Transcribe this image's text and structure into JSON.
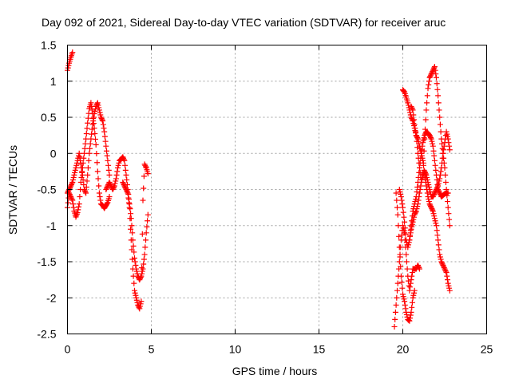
{
  "chart_data": {
    "type": "scatter",
    "title": "Day 092 of 2021, Sidereal Day-to-day VTEC variation (SDTVAR) for receiver aruc",
    "xlabel": "GPS time / hours",
    "ylabel": "SDTVAR / TECUs",
    "xlim": [
      0,
      25
    ],
    "ylim": [
      -2.5,
      1.5
    ],
    "x_ticks": [
      0,
      5,
      10,
      15,
      20,
      25
    ],
    "x_tick_labels": [
      "0",
      "5",
      "10",
      "15",
      "20",
      "25"
    ],
    "y_ticks": [
      -2.5,
      -2,
      -1.5,
      -1,
      -0.5,
      0,
      0.5,
      1,
      1.5
    ],
    "y_tick_labels": [
      "-2.5",
      "-2",
      "-1.5",
      "-1",
      "-0.5",
      "0",
      "0.5",
      "1",
      "1.5"
    ],
    "grid": true,
    "marker": "+",
    "color": "#ff0000",
    "series": [
      {
        "name": "s1",
        "x": [
          0.0,
          0.1,
          0.2,
          0.3
        ],
        "y": [
          1.15,
          1.25,
          1.33,
          1.4
        ]
      },
      {
        "name": "s2",
        "x": [
          0.0,
          0.1,
          0.2,
          0.3,
          0.4,
          0.5,
          0.6,
          0.7,
          0.8,
          0.9,
          1.0,
          1.1,
          1.2,
          1.3,
          1.4,
          1.5,
          1.6,
          1.7,
          1.8,
          1.9,
          2.0,
          2.1,
          2.2,
          2.3,
          2.4,
          2.5
        ],
        "y": [
          -0.75,
          -0.55,
          -0.6,
          -0.65,
          -0.8,
          -0.88,
          -0.82,
          -0.7,
          -0.4,
          -0.2,
          0.0,
          0.2,
          0.42,
          0.62,
          0.7,
          0.55,
          0.35,
          0.12,
          -0.25,
          -0.55,
          -0.7,
          -0.72,
          -0.76,
          -0.72,
          -0.68,
          -0.6
        ]
      },
      {
        "name": "s3",
        "x": [
          0.0,
          0.1,
          0.2,
          0.3,
          0.4,
          0.5,
          0.6,
          0.7,
          0.8,
          0.9,
          1.0,
          1.1,
          1.2,
          1.3,
          1.4,
          1.5,
          1.6,
          1.7,
          1.8,
          1.9,
          2.0,
          2.1,
          2.2,
          2.3,
          2.4,
          2.5
        ],
        "y": [
          -0.55,
          -0.5,
          -0.45,
          -0.4,
          -0.3,
          -0.2,
          -0.1,
          0.0,
          -0.15,
          -0.3,
          -0.5,
          -0.55,
          -0.3,
          0.0,
          0.2,
          0.4,
          0.55,
          0.65,
          0.7,
          0.6,
          0.5,
          0.45,
          0.3,
          0.1,
          -0.1,
          -0.3
        ]
      },
      {
        "name": "s4",
        "x": [
          2.3,
          2.4,
          2.5,
          2.6,
          2.7,
          2.8,
          2.9,
          3.0,
          3.1,
          3.2,
          3.3,
          3.4,
          3.5,
          3.6,
          3.7,
          3.8,
          3.9,
          4.0,
          4.1,
          4.2,
          4.3,
          4.4,
          4.5,
          4.6,
          4.7,
          4.8
        ],
        "y": [
          -0.5,
          -0.45,
          -0.4,
          -0.45,
          -0.5,
          -0.45,
          -0.35,
          -0.2,
          -0.1,
          -0.08,
          -0.05,
          -0.1,
          -0.3,
          -0.5,
          -0.7,
          -0.9,
          -1.2,
          -1.45,
          -1.6,
          -1.7,
          -1.75,
          -1.7,
          -1.6,
          -1.4,
          -1.1,
          -0.85
        ]
      },
      {
        "name": "s5",
        "x": [
          3.3,
          3.4,
          3.5,
          3.6,
          3.7,
          3.8,
          3.9,
          4.0,
          4.1,
          4.2,
          4.3,
          4.4,
          4.5,
          4.6,
          4.7,
          4.8
        ],
        "y": [
          -0.4,
          -0.45,
          -0.5,
          -0.55,
          -0.75,
          -1.2,
          -1.6,
          -1.9,
          -2.0,
          -2.1,
          -2.15,
          -2.05,
          -0.65,
          -0.15,
          -0.2,
          -0.28
        ]
      },
      {
        "name": "s6",
        "x": [
          19.5,
          19.6,
          19.7,
          19.8,
          19.9,
          20.0,
          20.1,
          20.2,
          20.3,
          20.4,
          20.5,
          20.6,
          20.7,
          20.8,
          20.9,
          21.0
        ],
        "y": [
          -2.4,
          -2.1,
          -1.8,
          -1.5,
          -1.2,
          -1.0,
          -1.1,
          -1.4,
          -1.7,
          -1.9,
          -1.75,
          -1.6,
          -1.6,
          -1.6,
          -1.55,
          -1.6
        ]
      },
      {
        "name": "s7",
        "x": [
          19.6,
          19.7,
          19.8,
          19.9,
          20.0,
          20.1,
          20.2,
          20.3,
          20.4,
          20.5,
          20.6,
          20.7
        ],
        "y": [
          -0.55,
          -0.85,
          -1.3,
          -1.7,
          -1.95,
          -2.05,
          -2.2,
          -2.3,
          -2.32,
          -2.2,
          -2.0,
          -1.9
        ]
      },
      {
        "name": "s8",
        "x": [
          20.0,
          20.1,
          20.2,
          20.3,
          20.4,
          20.5,
          20.6,
          20.7,
          20.8,
          20.9,
          21.0,
          21.1,
          21.2,
          21.3,
          21.4,
          21.5,
          21.6,
          21.7,
          21.8,
          21.9,
          22.0,
          22.1,
          22.2,
          22.3,
          22.4,
          22.5,
          22.6,
          22.7,
          22.8
        ],
        "y": [
          0.88,
          0.85,
          0.78,
          0.7,
          0.6,
          0.5,
          0.45,
          0.35,
          0.25,
          0.2,
          0.1,
          0.0,
          -0.1,
          -0.3,
          -0.45,
          -0.6,
          -0.7,
          -0.75,
          -0.8,
          -0.9,
          -1.0,
          -1.2,
          -1.4,
          -1.5,
          -1.55,
          -1.6,
          -1.65,
          -1.8,
          -1.9
        ]
      },
      {
        "name": "s9",
        "x": [
          20.5,
          20.6,
          20.7,
          20.8,
          20.9,
          21.0,
          21.1,
          21.2,
          21.3,
          21.4,
          21.5,
          21.6,
          21.7,
          21.8,
          21.9,
          22.0,
          22.1,
          22.2,
          22.3,
          22.4,
          22.5,
          22.6,
          22.7,
          22.8
        ],
        "y": [
          0.65,
          0.6,
          0.4,
          0.25,
          0.0,
          -0.2,
          -0.4,
          -0.3,
          0.2,
          0.6,
          0.9,
          1.05,
          1.1,
          1.15,
          1.2,
          1.05,
          0.8,
          0.5,
          0.2,
          0.0,
          -0.2,
          -0.5,
          -0.75,
          -1.0
        ]
      },
      {
        "name": "s10",
        "x": [
          19.8,
          19.9,
          20.0,
          20.1,
          20.2,
          20.3,
          20.4,
          20.5,
          20.6,
          20.7,
          20.8,
          20.9,
          21.0,
          21.1,
          21.2,
          21.3,
          21.4,
          21.5,
          21.6,
          21.7,
          21.8,
          21.9,
          22.0,
          22.1,
          22.2,
          22.3,
          22.4,
          22.5,
          22.6,
          22.7,
          22.8
        ],
        "y": [
          -0.5,
          -0.6,
          -0.75,
          -0.95,
          -1.2,
          -1.3,
          -1.2,
          -1.05,
          -0.95,
          -0.85,
          -0.8,
          -0.7,
          -0.55,
          -0.4,
          -0.3,
          -0.25,
          -0.3,
          -0.4,
          -0.5,
          -0.6,
          -0.6,
          -0.55,
          -0.5,
          -0.45,
          -0.35,
          -0.2,
          0.0,
          0.15,
          0.3,
          0.2,
          0.05
        ]
      },
      {
        "name": "s11",
        "x": [
          20.4,
          20.5,
          20.6,
          20.7,
          20.8,
          20.9,
          21.0,
          21.1,
          21.2,
          21.3,
          21.4,
          21.5,
          21.6,
          21.7,
          21.8,
          21.9,
          22.0,
          22.1,
          22.2,
          22.3,
          22.4,
          22.5,
          22.6,
          22.7
        ],
        "y": [
          -1.2,
          -1.0,
          -0.8,
          -0.7,
          -0.6,
          -0.4,
          -0.2,
          0.0,
          0.15,
          0.25,
          0.3,
          0.28,
          0.25,
          0.2,
          0.1,
          -0.1,
          -0.3,
          -0.5,
          -0.55,
          -0.6,
          -0.58,
          -0.56,
          -0.55,
          -0.55
        ]
      }
    ]
  }
}
